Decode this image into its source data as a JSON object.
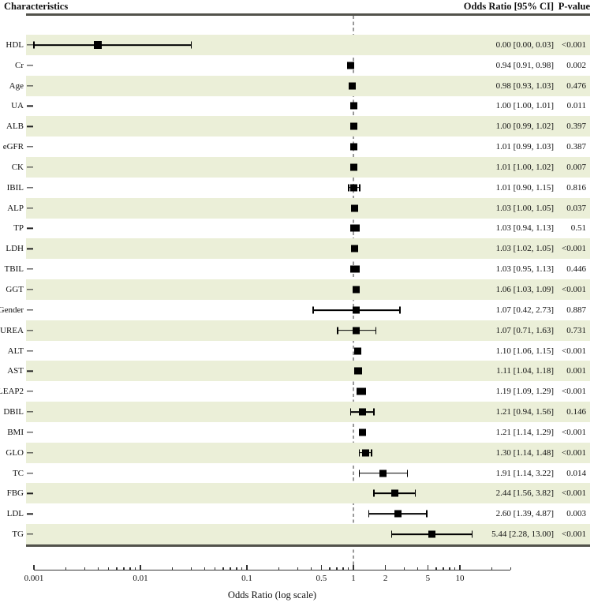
{
  "header": {
    "characteristics": "Characteristics",
    "odds_ratio_ci": "Odds Ratio [95% CI]",
    "p_value": "P-value"
  },
  "chart_data": {
    "type": "forest",
    "title": "",
    "xlabel": "Odds Ratio (log scale)",
    "x_scale": "log",
    "xlim": [
      0.001,
      30
    ],
    "reference_line": 1,
    "axis_major_ticks": [
      0.001,
      0.01,
      0.1,
      0.5,
      1,
      2,
      5,
      10
    ],
    "axis_major_labels": [
      "0.001",
      "0.01",
      "0.1",
      "0.5",
      "1",
      "2",
      "5",
      "10"
    ],
    "rows": [
      {
        "label": "HDL",
        "estimate": "0.00 [0.00, 0.03]",
        "p": "<0.001",
        "point": 0.004,
        "lower": 0.001,
        "upper": 0.03
      },
      {
        "label": "Cr",
        "estimate": "0.94 [0.91, 0.98]",
        "p": "0.002",
        "point": 0.94,
        "lower": 0.91,
        "upper": 0.98
      },
      {
        "label": "Age",
        "estimate": "0.98 [0.93, 1.03]",
        "p": "0.476",
        "point": 0.98,
        "lower": 0.93,
        "upper": 1.03
      },
      {
        "label": "UA",
        "estimate": "1.00 [1.00, 1.01]",
        "p": "0.011",
        "point": 1.0,
        "lower": 1.0,
        "upper": 1.01
      },
      {
        "label": "ALB",
        "estimate": "1.00 [0.99, 1.02]",
        "p": "0.397",
        "point": 1.0,
        "lower": 0.99,
        "upper": 1.02
      },
      {
        "label": "eGFR",
        "estimate": "1.01 [0.99, 1.03]",
        "p": "0.387",
        "point": 1.01,
        "lower": 0.99,
        "upper": 1.03
      },
      {
        "label": "CK",
        "estimate": "1.01 [1.00, 1.02]",
        "p": "0.007",
        "point": 1.01,
        "lower": 1.0,
        "upper": 1.02
      },
      {
        "label": "IBIL",
        "estimate": "1.01 [0.90, 1.15]",
        "p": "0.816",
        "point": 1.01,
        "lower": 0.9,
        "upper": 1.15
      },
      {
        "label": "ALP",
        "estimate": "1.03 [1.00, 1.05]",
        "p": "0.037",
        "point": 1.03,
        "lower": 1.0,
        "upper": 1.05
      },
      {
        "label": "TP",
        "estimate": "1.03 [0.94, 1.13]",
        "p": "0.51",
        "point": 1.03,
        "lower": 0.94,
        "upper": 1.13
      },
      {
        "label": "LDH",
        "estimate": "1.03 [1.02, 1.05]",
        "p": "<0.001",
        "point": 1.03,
        "lower": 1.02,
        "upper": 1.05
      },
      {
        "label": "TBIL",
        "estimate": "1.03 [0.95, 1.13]",
        "p": "0.446",
        "point": 1.03,
        "lower": 0.95,
        "upper": 1.13
      },
      {
        "label": "GGT",
        "estimate": "1.06 [1.03, 1.09]",
        "p": "<0.001",
        "point": 1.06,
        "lower": 1.03,
        "upper": 1.09
      },
      {
        "label": "Gender",
        "estimate": "1.07 [0.42, 2.73]",
        "p": "0.887",
        "point": 1.07,
        "lower": 0.42,
        "upper": 2.73
      },
      {
        "label": "UREA",
        "estimate": "1.07 [0.71, 1.63]",
        "p": "0.731",
        "point": 1.07,
        "lower": 0.71,
        "upper": 1.63
      },
      {
        "label": "ALT",
        "estimate": "1.10 [1.06, 1.15]",
        "p": "<0.001",
        "point": 1.1,
        "lower": 1.06,
        "upper": 1.15
      },
      {
        "label": "AST",
        "estimate": "1.11 [1.04, 1.18]",
        "p": "0.001",
        "point": 1.11,
        "lower": 1.04,
        "upper": 1.18
      },
      {
        "label": "LEAP2",
        "estimate": "1.19 [1.09, 1.29]",
        "p": "<0.001",
        "point": 1.19,
        "lower": 1.09,
        "upper": 1.29
      },
      {
        "label": "DBIL",
        "estimate": "1.21 [0.94, 1.56]",
        "p": "0.146",
        "point": 1.21,
        "lower": 0.94,
        "upper": 1.56
      },
      {
        "label": "BMI",
        "estimate": "1.21 [1.14, 1.29]",
        "p": "<0.001",
        "point": 1.21,
        "lower": 1.14,
        "upper": 1.29
      },
      {
        "label": "GLO",
        "estimate": "1.30 [1.14, 1.48]",
        "p": "<0.001",
        "point": 1.3,
        "lower": 1.14,
        "upper": 1.48
      },
      {
        "label": "TC",
        "estimate": "1.91 [1.14, 3.22]",
        "p": "0.014",
        "point": 1.91,
        "lower": 1.14,
        "upper": 3.22
      },
      {
        "label": "FBG",
        "estimate": "2.44 [1.56, 3.82]",
        "p": "<0.001",
        "point": 2.44,
        "lower": 1.56,
        "upper": 3.82
      },
      {
        "label": "LDL",
        "estimate": "2.60 [1.39, 4.87]",
        "p": "0.003",
        "point": 2.6,
        "lower": 1.39,
        "upper": 4.87
      },
      {
        "label": "TG",
        "estimate": "5.44 [2.28, 13.00]",
        "p": "<0.001",
        "point": 5.44,
        "lower": 2.28,
        "upper": 13.0
      }
    ],
    "layout_hints": {
      "stripe_rows": "odd rows shaded",
      "grid": false,
      "legend": "none"
    },
    "colors": {
      "stripe": "#ebefd8",
      "marker": "#000000",
      "reference_line": "#999999",
      "rule": "#52524b"
    }
  }
}
